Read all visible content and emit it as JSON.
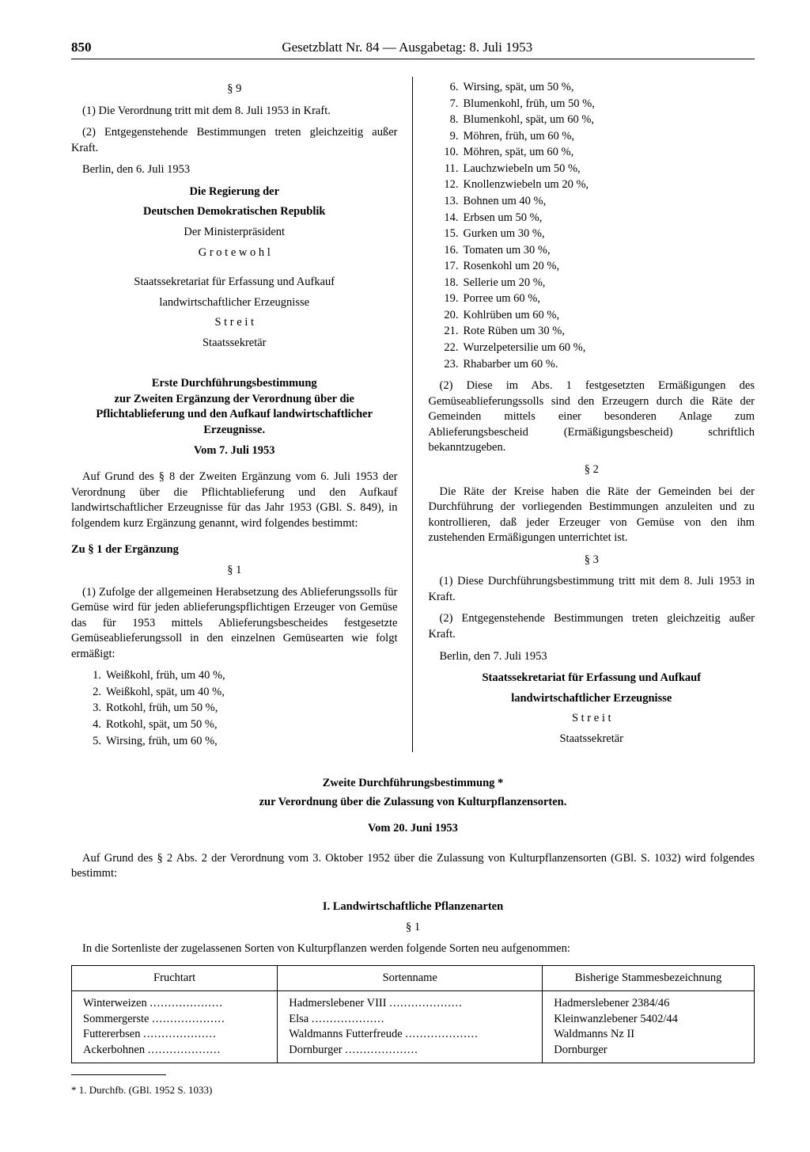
{
  "header": {
    "page_number": "850",
    "title": "Gesetzblatt Nr. 84 — Ausgabetag: 8. Juli 1953"
  },
  "left": {
    "s9_label": "§ 9",
    "s9_p1": "(1) Die Verordnung tritt mit dem 8. Juli 1953 in Kraft.",
    "s9_p2": "(2) Entgegenstehende Bestimmungen treten gleichzeitig außer Kraft.",
    "place_date": "Berlin, den 6. Juli 1953",
    "gov1": "Die Regierung der",
    "gov2": "Deutschen Demokratischen Republik",
    "pm_title": "Der Ministerpräsident",
    "pm_name": "G r o t e w o h l",
    "sec_line1": "Staatssekretariat für Erfassung und Aufkauf",
    "sec_line2": "landwirtschaftlicher Erzeugnisse",
    "sec_name": "S t r e i t",
    "sec_title": "Staatssekretär",
    "ord_title1": "Erste Durchführungsbestimmung",
    "ord_title2": "zur Zweiten Ergänzung der Verordnung über die Pflichtablieferung und den Aufkauf landwirtschaftlicher Erzeugnisse.",
    "ord_date": "Vom 7. Juli 1953",
    "ord_intro": "Auf Grund des § 8 der Zweiten Ergänzung vom 6. Juli 1953 der Verordnung über die Pflichtablieferung und den Aufkauf landwirtschaftlicher Erzeugnisse für das Jahr 1953 (GBl. S. 849), in folgendem kurz Ergänzung genannt, wird folgendes bestimmt:",
    "zu_s1": "Zu § 1 der Ergänzung",
    "s1_label": "§ 1",
    "s1_p1": "(1) Zufolge der allgemeinen Herabsetzung des Ablieferungssolls für Gemüse wird für jeden ablieferungspflichtigen Erzeuger von Gemüse das für 1953 mittels Ablieferungsbescheides festgesetzte Gemüseablieferungssoll in den einzelnen Gemüsearten wie folgt ermäßigt:",
    "veg_left": [
      "Weißkohl, früh, um 40 %,",
      "Weißkohl, spät, um 40 %,",
      "Rotkohl, früh, um 50 %,",
      "Rotkohl, spät, um 50 %,",
      "Wirsing, früh, um 60 %,"
    ]
  },
  "right": {
    "veg_right": [
      "Wirsing, spät, um 50 %,",
      "Blumenkohl, früh, um 50 %,",
      "Blumenkohl, spät, um 60 %,",
      "Möhren, früh, um 60 %,",
      "Möhren, spät, um 60 %,",
      "Lauchzwiebeln um 50 %,",
      "Knollenzwiebeln um 20 %,",
      "Bohnen um 40 %,",
      "Erbsen um 50 %,",
      "Gurken um 30 %,",
      "Tomaten um 30 %,",
      "Rosenkohl um 20 %,",
      "Sellerie um 20 %,",
      "Porree um 60 %,",
      "Kohlrüben um 60 %,",
      "Rote Rüben um 30 %,",
      "Wurzelpetersilie um 60 %,",
      "Rhabarber um 60 %."
    ],
    "veg_start": 6,
    "s1_p2": "(2) Diese im Abs. 1 festgesetzten Ermäßigungen des Gemüseablieferungssolls sind den Erzeugern durch die Räte der Gemeinden mittels einer besonderen Anlage zum Ablieferungsbescheid (Ermäßigungsbescheid) schriftlich bekanntzugeben.",
    "s2_label": "§ 2",
    "s2_p": "Die Räte der Kreise haben die Räte der Gemeinden bei der Durchführung der vorliegenden Bestimmungen anzuleiten und zu kontrollieren, daß jeder Erzeuger von Gemüse von den ihm zustehenden Ermäßigungen unterrichtet ist.",
    "s3_label": "§ 3",
    "s3_p1": "(1) Diese Durchführungsbestimmung tritt mit dem 8. Juli 1953 in Kraft.",
    "s3_p2": "(2) Entgegenstehende Bestimmungen treten gleichzeitig außer Kraft.",
    "place_date": "Berlin, den 7. Juli 1953",
    "sec_line1": "Staatssekretariat für Erfassung und Aufkauf",
    "sec_line2": "landwirtschaftlicher Erzeugnisse",
    "sec_name": "S t r e i t",
    "sec_title": "Staatssekretär"
  },
  "bottom": {
    "title": "Zweite Durchführungsbestimmung *",
    "subtitle": "zur Verordnung über die Zulassung von Kulturpflanzensorten.",
    "date": "Vom 20. Juni 1953",
    "intro": "Auf Grund des § 2 Abs. 2 der Verordnung vom 3. Oktober 1952 über die Zulassung von Kulturpflanzensorten (GBl. S. 1032) wird folgendes bestimmt:",
    "section_I": "I. Landwirtschaftliche Pflanzenarten",
    "s1_label": "§ 1",
    "s1_text": "In die Sortenliste der zugelassenen Sorten von Kulturpflanzen werden folgende Sorten neu aufgenommen:",
    "table": {
      "headers": [
        "Fruchtart",
        "Sortenname",
        "Bisherige Stammesbezeichnung"
      ],
      "rows": [
        [
          "Winterweizen",
          "Hadmerslebener VIII",
          "Hadmerslebener 2384/46"
        ],
        [
          "Sommergerste",
          "Elsa",
          "Kleinwanzlebener 5402/44"
        ],
        [
          "Futtererbsen",
          "Waldmanns Futterfreude",
          "Waldmanns Nz II"
        ],
        [
          "Ackerbohnen",
          "Dornburger",
          "Dornburger"
        ]
      ]
    },
    "footnote": "* 1. Durchfb. (GBl. 1952 S. 1033)"
  }
}
